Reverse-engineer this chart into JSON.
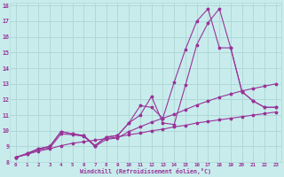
{
  "xlabel": "Windchill (Refroidissement éolien,°C)",
  "bg_color": "#c8ecec",
  "grid_color": "#b0d8d8",
  "line_color": "#993399",
  "xlim": [
    -0.5,
    23.5
  ],
  "ylim": [
    8,
    18.2
  ],
  "xticks": [
    0,
    1,
    2,
    3,
    4,
    5,
    6,
    7,
    8,
    9,
    10,
    11,
    12,
    13,
    14,
    15,
    16,
    17,
    18,
    19,
    20,
    21,
    22,
    23
  ],
  "yticks": [
    8,
    9,
    10,
    11,
    12,
    13,
    14,
    15,
    16,
    17,
    18
  ],
  "series1_x": [
    0,
    1,
    2,
    3,
    4,
    5,
    6,
    7,
    8,
    9,
    10,
    11,
    12,
    13,
    14,
    15,
    16,
    17,
    18,
    19,
    20,
    21,
    22,
    23
  ],
  "series1_y": [
    8.3,
    8.55,
    8.85,
    9.0,
    9.95,
    9.8,
    9.7,
    9.05,
    9.6,
    9.7,
    10.5,
    11.0,
    12.2,
    10.5,
    10.4,
    12.9,
    15.5,
    16.9,
    17.8,
    15.3,
    12.5,
    11.9,
    11.5,
    11.5
  ],
  "series2_x": [
    0,
    1,
    2,
    3,
    4,
    5,
    6,
    7,
    8,
    9,
    10,
    11,
    12,
    13,
    14,
    15,
    16,
    17,
    18,
    19,
    20,
    21,
    22,
    23
  ],
  "series2_y": [
    8.3,
    8.55,
    8.85,
    9.0,
    9.95,
    9.8,
    9.7,
    9.05,
    9.6,
    9.7,
    10.5,
    11.6,
    11.5,
    10.8,
    13.1,
    15.2,
    17.0,
    17.8,
    15.3,
    15.3,
    12.5,
    11.9,
    11.5,
    11.5
  ],
  "series3_x": [
    0,
    1,
    2,
    3,
    4,
    5,
    6,
    7,
    8,
    9,
    10,
    11,
    12,
    13,
    14,
    15,
    16,
    17,
    18,
    19,
    20,
    21,
    22,
    23
  ],
  "series3_y": [
    8.3,
    8.5,
    8.8,
    8.9,
    9.8,
    9.75,
    9.65,
    9.0,
    9.45,
    9.55,
    9.95,
    10.25,
    10.55,
    10.8,
    11.05,
    11.35,
    11.65,
    11.9,
    12.15,
    12.35,
    12.55,
    12.7,
    12.85,
    13.0
  ],
  "series4_x": [
    0,
    1,
    2,
    3,
    4,
    5,
    6,
    7,
    8,
    9,
    10,
    11,
    12,
    13,
    14,
    15,
    16,
    17,
    18,
    19,
    20,
    21,
    22,
    23
  ],
  "series4_y": [
    8.3,
    8.5,
    8.7,
    8.85,
    9.05,
    9.2,
    9.3,
    9.4,
    9.5,
    9.6,
    9.75,
    9.85,
    10.0,
    10.1,
    10.25,
    10.35,
    10.5,
    10.6,
    10.7,
    10.8,
    10.9,
    11.0,
    11.1,
    11.2
  ]
}
